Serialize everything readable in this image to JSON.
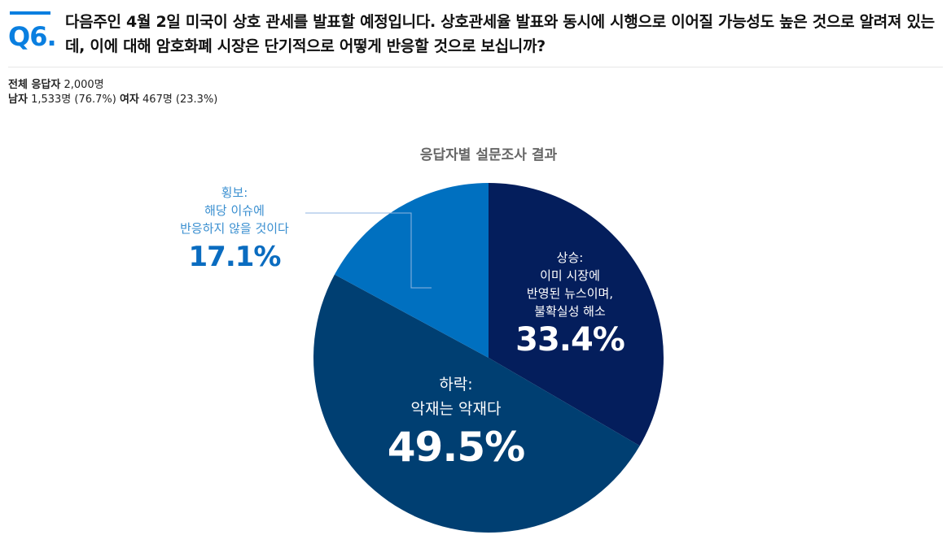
{
  "question": {
    "number": "Q6.",
    "text": "다음주인 4월 2일 미국이 상호 관세를 발표할 예정입니다. 상호관세율 발표와 동시에 시행으로 이어질 가능성도 높은 것으로 알려져 있는데, 이에 대해 암호화폐 시장은 단기적으로 어떻게 반응할 것으로 보십니까?"
  },
  "stats": {
    "total_label": "전체 응답자",
    "total_value": "2,000명",
    "male_label": "남자",
    "male_value": "1,533명 (76.7%)",
    "female_label": "여자",
    "female_value": "467명 (23.3%)"
  },
  "chart_data": {
    "type": "pie",
    "title": "응답자별 설문조사 결과",
    "slices": [
      {
        "name": "상승",
        "label_lines": [
          "상승:",
          "이미 시장에",
          "반영된 뉴스이며,",
          "불확실성 해소"
        ],
        "value": 33.4,
        "display": "33.4%",
        "color": "#041e5c"
      },
      {
        "name": "하락",
        "label_lines": [
          "하락:",
          "악재는 악재다"
        ],
        "value": 49.5,
        "display": "49.5%",
        "color": "#003f72"
      },
      {
        "name": "횡보",
        "label_lines": [
          "횡보:",
          "해당 이슈에",
          "반응하지 않을 것이다"
        ],
        "value": 17.1,
        "display": "17.1%",
        "color": "#0070c0"
      }
    ],
    "start": "top",
    "direction": "clockwise"
  }
}
